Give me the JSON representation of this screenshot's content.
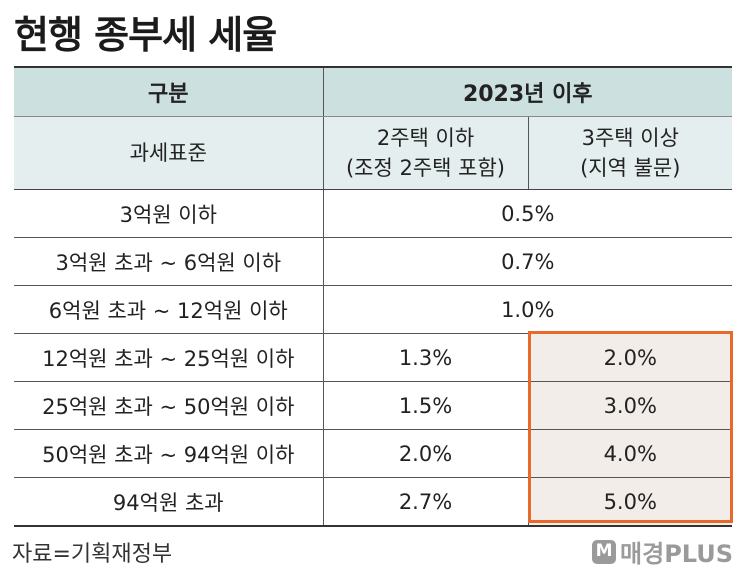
{
  "title": "현행 종부세 세율",
  "table": {
    "header_category": "구분",
    "header_period": "2023년 이후",
    "sub_category": "과세표준",
    "sub_col1_line1": "2주택 이하",
    "sub_col1_line2": "(조정 2주택 포함)",
    "sub_col2_line1": "3주택 이상",
    "sub_col2_line2": "(지역 불문)",
    "merged_rows": [
      {
        "bracket": "3억원 이하",
        "rate": "0.5%"
      },
      {
        "bracket": "3억원 초과 ~ 6억원 이하",
        "rate": "0.7%"
      },
      {
        "bracket": "6억원 초과 ~ 12억원 이하",
        "rate": "1.0%"
      }
    ],
    "split_rows": [
      {
        "bracket": "12억원 초과  ~ 25억원 이하",
        "rate_two_or_less": "1.3%",
        "rate_three_plus": "2.0%"
      },
      {
        "bracket": "25억원 초과 ~ 50억원 이하",
        "rate_two_or_less": "1.5%",
        "rate_three_plus": "3.0%"
      },
      {
        "bracket": "50억원 초과 ~ 94억원 이하",
        "rate_two_or_less": "2.0%",
        "rate_three_plus": "4.0%"
      },
      {
        "bracket": "94억원 초과",
        "rate_two_or_less": "2.7%",
        "rate_three_plus": "5.0%"
      }
    ]
  },
  "source": "자료=기획재정부",
  "logo_text": "매경PLUS",
  "colors": {
    "header_bg": "#cde0e0",
    "subheader_bg": "#e4eeee",
    "highlight_border": "#e8692a",
    "highlight_bg": "#f2ede8"
  }
}
